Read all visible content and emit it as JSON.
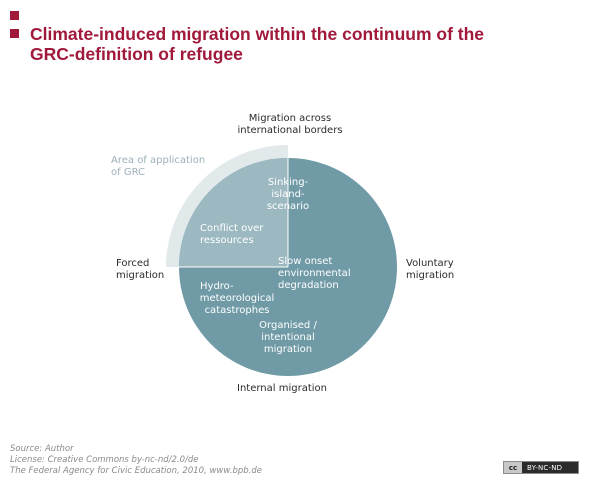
{
  "title": {
    "line1": "Climate-induced migration within the continuum of the",
    "line2": "GRC-definition of refugee"
  },
  "colors": {
    "accent": "#a0193a",
    "circle": "#6f9aa6",
    "quadrant": "#9cb8c0",
    "grc_band": "#e2e9eb"
  },
  "axes": {
    "top": {
      "line1": "Migration across",
      "line2": "international borders"
    },
    "left": {
      "line1": "Forced",
      "line2": "migration"
    },
    "right": {
      "line1": "Voluntary",
      "line2": "migration"
    },
    "bottom": "Internal migration"
  },
  "grc_area": {
    "line1": "Area of application",
    "line2": "of GRC"
  },
  "segments": {
    "sinking": {
      "line1": "Sinking-",
      "line2": "island-",
      "line3": "scenario"
    },
    "conflict": {
      "line1": "Conflict over",
      "line2": "ressources"
    },
    "slow_onset": {
      "line1": "Slow onset",
      "line2": "environmental",
      "line3": "degradation"
    },
    "hydro": {
      "line1": "Hydro-",
      "line2": "meteorological",
      "line3": "catastrophes"
    },
    "organised": {
      "line1": "Organised /",
      "line2": "intentional",
      "line3": "migration"
    }
  },
  "footer": {
    "source": "Source: Author",
    "license": "License: Creative Commons by-nc-nd/2.0/de",
    "publisher": "The Federal Agency for Civic Education, 2010, www.bpb.de"
  },
  "cc_badge": {
    "symbol": "cc",
    "label": "BY-NC-ND"
  }
}
